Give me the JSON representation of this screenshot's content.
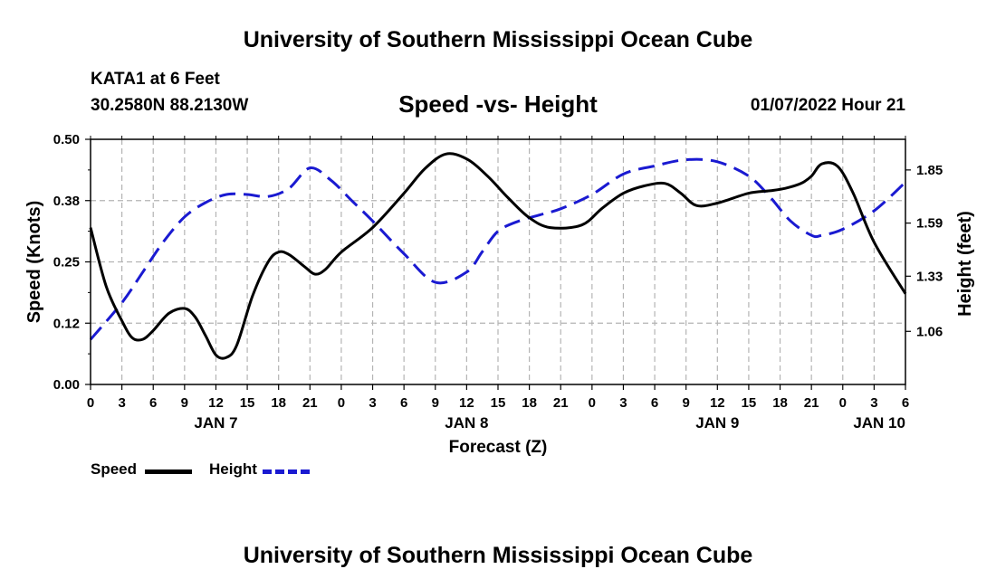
{
  "header": {
    "title": "University of Southern Mississippi Ocean Cube",
    "station": "KATA1 at 6 Feet",
    "coords": "30.2580N  88.2130W",
    "subtitle": "Speed -vs- Height",
    "datetime": "01/07/2022 Hour 21",
    "footer_title": "University of Southern Mississippi Ocean Cube"
  },
  "legend": {
    "speed_label": "Speed",
    "height_label": "Height"
  },
  "chart_data": {
    "type": "line",
    "xlabel": "Forecast (Z)",
    "ylabel": "Speed (Knots)",
    "y2label": "Height (feet)",
    "ylim": [
      0,
      0.5
    ],
    "y2lim": [
      0.8,
      2.0
    ],
    "xlim": [
      0,
      78
    ],
    "grid": true,
    "x_ticks": [
      0,
      3,
      6,
      9,
      12,
      15,
      18,
      21,
      24,
      27,
      30,
      33,
      36,
      39,
      42,
      45,
      48,
      51,
      54,
      57,
      60,
      63,
      66,
      69,
      72,
      75,
      78
    ],
    "x_tick_labels": [
      "0",
      "3",
      "6",
      "9",
      "12",
      "15",
      "18",
      "21",
      "0",
      "3",
      "6",
      "9",
      "12",
      "15",
      "18",
      "21",
      "0",
      "3",
      "6",
      "9",
      "12",
      "15",
      "18",
      "21",
      "0",
      "3",
      "6"
    ],
    "y_ticks": [
      0.0,
      0.125,
      0.25,
      0.375,
      0.5
    ],
    "y_tick_labels": [
      "0.00",
      "0.12",
      "0.25",
      "0.38",
      "0.50"
    ],
    "y2_ticks": [
      1.06,
      1.33,
      1.59,
      1.85
    ],
    "y2_tick_labels": [
      "1.06",
      "1.33",
      "1.59",
      "1.85"
    ],
    "day_labels": [
      {
        "x": 12,
        "label": "JAN 7"
      },
      {
        "x": 36,
        "label": "JAN 8"
      },
      {
        "x": 60,
        "label": "JAN 9"
      },
      {
        "x": 75.5,
        "label": "JAN 10"
      }
    ],
    "series": [
      {
        "name": "Speed",
        "axis": "left",
        "color": "#000000",
        "dash": "solid",
        "x": [
          0,
          1.5,
          3,
          4,
          5,
          6,
          7.5,
          9,
          10,
          11,
          12,
          13,
          14,
          15.5,
          17,
          18,
          19,
          20.5,
          21.5,
          22.5,
          24,
          27,
          30,
          32,
          34,
          36,
          38,
          40,
          42,
          44,
          47,
          49,
          51,
          53,
          55,
          56.5,
          58,
          60,
          63,
          65,
          66.5,
          68,
          69,
          70,
          71.5,
          73,
          75,
          78
        ],
        "y": [
          0.32,
          0.2,
          0.13,
          0.095,
          0.092,
          0.11,
          0.145,
          0.155,
          0.138,
          0.1,
          0.06,
          0.055,
          0.08,
          0.18,
          0.25,
          0.27,
          0.265,
          0.24,
          0.225,
          0.235,
          0.27,
          0.32,
          0.39,
          0.44,
          0.47,
          0.46,
          0.425,
          0.38,
          0.34,
          0.32,
          0.325,
          0.36,
          0.39,
          0.405,
          0.41,
          0.39,
          0.365,
          0.37,
          0.39,
          0.395,
          0.4,
          0.41,
          0.425,
          0.45,
          0.445,
          0.39,
          0.29,
          0.185
        ]
      },
      {
        "name": "Height",
        "axis": "right",
        "color": "#1a1ad1",
        "dash": "dashed",
        "x": [
          0,
          3,
          5,
          7,
          9,
          11,
          13,
          15,
          17,
          19,
          21,
          23,
          25,
          27,
          30,
          33,
          36,
          37.5,
          39,
          41,
          43,
          45,
          48,
          51,
          54,
          57,
          60,
          63,
          65,
          67,
          69,
          70,
          72,
          75,
          78
        ],
        "y": [
          1.02,
          1.2,
          1.35,
          1.5,
          1.62,
          1.69,
          1.73,
          1.73,
          1.72,
          1.76,
          1.86,
          1.8,
          1.7,
          1.6,
          1.44,
          1.3,
          1.35,
          1.45,
          1.55,
          1.6,
          1.63,
          1.66,
          1.73,
          1.83,
          1.87,
          1.9,
          1.89,
          1.82,
          1.72,
          1.6,
          1.53,
          1.53,
          1.56,
          1.65,
          1.79
        ]
      }
    ]
  }
}
